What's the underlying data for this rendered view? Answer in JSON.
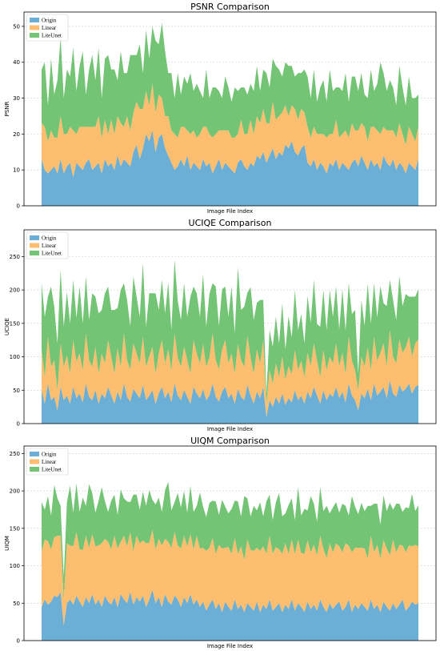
{
  "chart_data": [
    {
      "type": "area",
      "stacked": true,
      "title": "PSNR Comparison",
      "xlabel": "Image File Index",
      "ylabel": "PSNR",
      "ylim": [
        0,
        54
      ],
      "yticks": [
        0,
        10,
        20,
        30,
        40,
        50
      ],
      "grid": "horizontal dashed",
      "legend_position": "top-left",
      "n_points": 120,
      "colors": {
        "Origin": "#6baed6",
        "Linear": "#fdbf6f",
        "LiteUnet": "#74c476"
      },
      "series": [
        {
          "name": "Origin",
          "color": "#6baed6",
          "values": [
            13,
            10,
            9,
            10,
            11,
            9,
            13,
            9,
            11,
            12,
            8,
            12,
            11,
            10,
            12,
            13,
            10,
            11,
            12,
            9,
            13,
            11,
            12,
            10,
            14,
            11,
            13,
            12,
            11,
            15,
            17,
            13,
            16,
            20,
            18,
            21,
            15,
            19,
            20,
            16,
            14,
            12,
            10,
            11,
            13,
            11,
            14,
            10,
            12,
            11,
            10,
            13,
            11,
            12,
            9,
            11,
            13,
            10,
            12,
            11,
            10,
            9,
            12,
            13,
            11,
            10,
            12,
            11,
            14,
            13,
            15,
            12,
            14,
            16,
            13,
            15,
            14,
            17,
            16,
            18,
            15,
            14,
            16,
            17,
            12,
            11,
            13,
            10,
            12,
            11,
            9,
            12,
            11,
            13,
            10,
            12,
            11,
            10,
            12,
            13,
            11,
            14,
            12,
            10,
            13,
            11,
            12,
            10,
            14,
            12,
            11,
            13,
            10,
            12,
            11,
            9,
            12,
            11,
            10,
            13
          ]
        },
        {
          "name": "Linear",
          "color": "#fdbf6f",
          "values": [
            10,
            12,
            9,
            11,
            8,
            10,
            12,
            11,
            9,
            10,
            13,
            8,
            11,
            12,
            10,
            9,
            12,
            11,
            13,
            10,
            11,
            9,
            12,
            10,
            11,
            12,
            9,
            13,
            10,
            11,
            12,
            14,
            11,
            12,
            10,
            13,
            11,
            12,
            10,
            9,
            11,
            9,
            10,
            8,
            9,
            11,
            7,
            10,
            9,
            8,
            10,
            9,
            11,
            8,
            10,
            9,
            8,
            11,
            9,
            10,
            9,
            10,
            8,
            11,
            9,
            10,
            12,
            9,
            11,
            10,
            12,
            11,
            9,
            13,
            11,
            10,
            12,
            11,
            9,
            10,
            12,
            10,
            11,
            9,
            10,
            8,
            9,
            10,
            8,
            9,
            10,
            8,
            9,
            11,
            9,
            8,
            10,
            9,
            11,
            8,
            10,
            9,
            10,
            8,
            9,
            11,
            9,
            10,
            8,
            9,
            10,
            8,
            9,
            11,
            9,
            8,
            10,
            9,
            8,
            9
          ]
        },
        {
          "name": "LiteUnet",
          "color": "#74c476",
          "values": [
            15,
            18,
            10,
            20,
            12,
            16,
            22,
            10,
            18,
            14,
            23,
            12,
            17,
            21,
            9,
            16,
            20,
            13,
            19,
            11,
            17,
            22,
            14,
            18,
            10,
            20,
            15,
            12,
            21,
            16,
            13,
            18,
            10,
            17,
            13,
            16,
            20,
            14,
            21,
            18,
            12,
            16,
            10,
            18,
            9,
            14,
            13,
            17,
            11,
            15,
            12,
            8,
            16,
            10,
            14,
            13,
            11,
            9,
            15,
            12,
            10,
            14,
            12,
            9,
            13,
            11,
            10,
            12,
            14,
            9,
            11,
            14,
            10,
            12,
            15,
            13,
            10,
            12,
            14,
            11,
            9,
            13,
            10,
            12,
            14,
            11,
            16,
            9,
            13,
            15,
            10,
            18,
            12,
            9,
            14,
            12,
            16,
            10,
            13,
            15,
            11,
            14,
            9,
            12,
            16,
            10,
            13,
            20,
            15,
            11,
            14,
            12,
            9,
            16,
            13,
            11,
            14,
            10,
            12,
            9
          ]
        }
      ]
    },
    {
      "type": "area",
      "stacked": true,
      "title": "UCIQE Comparison",
      "xlabel": "Image File Index",
      "ylabel": "UCIQE",
      "ylim": [
        0,
        290
      ],
      "yticks": [
        0,
        50,
        100,
        150,
        200,
        250
      ],
      "grid": "horizontal dashed",
      "legend_position": "top-left",
      "n_points": 120,
      "colors": {
        "Origin": "#6baed6",
        "Linear": "#fdbf6f",
        "LiteUnet": "#74c476"
      },
      "series": [
        {
          "name": "Origin",
          "color": "#6baed6",
          "values": [
            50,
            30,
            60,
            35,
            40,
            20,
            55,
            35,
            42,
            30,
            55,
            38,
            45,
            32,
            60,
            40,
            35,
            50,
            30,
            45,
            38,
            55,
            42,
            30,
            48,
            35,
            60,
            40,
            33,
            52,
            45,
            38,
            58,
            35,
            42,
            50,
            30,
            45,
            55,
            38,
            48,
            32,
            60,
            42,
            35,
            50,
            40,
            30,
            55,
            45,
            38,
            52,
            35,
            42,
            60,
            40,
            33,
            48,
            55,
            38,
            45,
            30,
            52,
            40,
            35,
            58,
            42,
            30,
            48,
            38,
            55,
            10,
            35,
            25,
            40,
            30,
            45,
            28,
            38,
            32,
            50,
            35,
            42,
            30,
            48,
            38,
            55,
            42,
            30,
            50,
            35,
            45,
            40,
            55,
            38,
            48,
            32,
            60,
            42,
            35,
            20,
            45,
            38,
            52,
            35,
            60,
            42,
            48,
            55,
            38,
            65,
            45,
            40,
            58,
            48,
            52,
            60,
            45,
            55,
            58
          ]
        },
        {
          "name": "Linear",
          "color": "#fdbf6f",
          "values": [
            60,
            40,
            70,
            50,
            55,
            30,
            65,
            50,
            60,
            45,
            70,
            55,
            60,
            48,
            75,
            55,
            50,
            65,
            45,
            60,
            52,
            70,
            58,
            45,
            65,
            50,
            75,
            55,
            48,
            68,
            60,
            52,
            72,
            50,
            58,
            65,
            45,
            60,
            70,
            52,
            63,
            48,
            75,
            57,
            50,
            65,
            55,
            45,
            70,
            60,
            52,
            67,
            50,
            57,
            75,
            55,
            48,
            63,
            70,
            52,
            60,
            45,
            67,
            55,
            50,
            73,
            57,
            45,
            63,
            52,
            70,
            20,
            45,
            35,
            50,
            40,
            55,
            38,
            48,
            42,
            60,
            45,
            52,
            40,
            58,
            48,
            65,
            52,
            40,
            60,
            45,
            55,
            50,
            65,
            48,
            58,
            42,
            70,
            52,
            45,
            30,
            55,
            48,
            62,
            45,
            70,
            52,
            58,
            65,
            48,
            75,
            55,
            50,
            68,
            58,
            62,
            70,
            55,
            65,
            68
          ]
        },
        {
          "name": "LiteUnet",
          "color": "#74c476",
          "values": [
            100,
            90,
            60,
            120,
            80,
            70,
            110,
            60,
            95,
            75,
            90,
            65,
            100,
            70,
            85,
            60,
            110,
            75,
            90,
            65,
            105,
            80,
            70,
            95,
            60,
            115,
            75,
            90,
            65,
            100,
            85,
            70,
            110,
            60,
            95,
            80,
            120,
            65,
            90,
            75,
            100,
            60,
            110,
            85,
            70,
            95,
            65,
            115,
            80,
            90,
            70,
            105,
            60,
            95,
            75,
            110,
            65,
            90,
            80,
            70,
            100,
            60,
            115,
            75,
            90,
            65,
            105,
            80,
            70,
            95,
            60,
            15,
            60,
            55,
            70,
            50,
            80,
            45,
            75,
            55,
            90,
            60,
            70,
            50,
            85,
            65,
            95,
            55,
            75,
            90,
            60,
            100,
            70,
            85,
            55,
            95,
            65,
            80,
            70,
            90,
            25,
            85,
            60,
            95,
            70,
            80,
            65,
            100,
            60,
            90,
            75,
            85,
            65,
            95,
            70,
            80,
            60,
            90,
            70,
            75
          ]
        }
      ]
    },
    {
      "type": "area",
      "stacked": true,
      "title": "UIQM Comparison",
      "xlabel": "Image File Index",
      "ylabel": "UIQM",
      "ylim": [
        0,
        260
      ],
      "yticks": [
        0,
        50,
        100,
        150,
        200,
        250
      ],
      "grid": "horizontal dashed",
      "legend_position": "top-left",
      "n_points": 120,
      "colors": {
        "Origin": "#6baed6",
        "Linear": "#fdbf6f",
        "LiteUnet": "#74c476"
      },
      "series": [
        {
          "name": "Origin",
          "color": "#6baed6",
          "values": [
            45,
            55,
            48,
            52,
            60,
            58,
            65,
            20,
            50,
            55,
            48,
            60,
            52,
            45,
            58,
            50,
            62,
            48,
            55,
            45,
            60,
            52,
            48,
            58,
            45,
            62,
            55,
            50,
            65,
            48,
            58,
            52,
            60,
            45,
            55,
            68,
            50,
            58,
            45,
            62,
            52,
            48,
            60,
            55,
            45,
            58,
            50,
            62,
            48,
            55,
            45,
            52,
            40,
            48,
            55,
            42,
            50,
            38,
            52,
            45,
            40,
            55,
            42,
            48,
            38,
            50,
            45,
            40,
            52,
            38,
            48,
            42,
            55,
            40,
            45,
            50,
            38,
            48,
            42,
            55,
            40,
            50,
            45,
            38,
            52,
            42,
            48,
            40,
            55,
            45,
            38,
            50,
            42,
            48,
            52,
            40,
            45,
            55,
            38,
            48,
            42,
            50,
            45,
            40,
            55,
            42,
            48,
            38,
            52,
            45,
            40,
            50,
            42,
            48,
            55,
            40,
            45,
            52,
            48,
            50
          ]
        },
        {
          "name": "Linear",
          "color": "#fdbf6f",
          "values": [
            75,
            80,
            85,
            70,
            78,
            82,
            75,
            35,
            80,
            72,
            78,
            85,
            70,
            76,
            82,
            74,
            80,
            78,
            72,
            85,
            76,
            80,
            74,
            82,
            78,
            70,
            85,
            76,
            80,
            72,
            82,
            78,
            74,
            85,
            76,
            80,
            72,
            78,
            82,
            74,
            80,
            76,
            85,
            72,
            78,
            82,
            76,
            80,
            74,
            85,
            78,
            72,
            80,
            76,
            82,
            74,
            78,
            85,
            72,
            80,
            76,
            82,
            74,
            78,
            70,
            85,
            76,
            80,
            72,
            82,
            78,
            74,
            85,
            76,
            80,
            72,
            78,
            82,
            74,
            80,
            76,
            85,
            72,
            78,
            82,
            76,
            80,
            74,
            85,
            78,
            72,
            80,
            76,
            82,
            74,
            78,
            85,
            72,
            80,
            76,
            82,
            74,
            78,
            70,
            85,
            76,
            80,
            72,
            82,
            78,
            74,
            85,
            76,
            80,
            72,
            78,
            82,
            74,
            80,
            76
          ]
        },
        {
          "name": "LiteUnet",
          "color": "#74c476",
          "values": [
            65,
            40,
            60,
            45,
            70,
            50,
            40,
            30,
            55,
            80,
            45,
            65,
            50,
            70,
            40,
            85,
            55,
            45,
            60,
            75,
            50,
            40,
            65,
            55,
            45,
            70,
            50,
            60,
            40,
            75,
            55,
            45,
            65,
            50,
            70,
            40,
            60,
            55,
            45,
            65,
            80,
            50,
            40,
            70,
            55,
            60,
            45,
            65,
            50,
            40,
            75,
            55,
            45,
            60,
            50,
            70,
            40,
            65,
            55,
            45,
            60,
            50,
            70,
            40,
            85,
            55,
            45,
            60,
            50,
            65,
            40,
            70,
            55,
            45,
            60,
            75,
            50,
            40,
            65,
            55,
            45,
            70,
            50,
            60,
            40,
            75,
            55,
            45,
            65,
            50,
            70,
            40,
            60,
            55,
            45,
            65,
            50,
            40,
            75,
            55,
            45,
            60,
            50,
            70,
            40,
            65,
            55,
            45,
            60,
            50,
            70,
            40,
            65,
            55,
            45,
            60,
            50,
            70,
            45,
            55
          ]
        }
      ]
    }
  ]
}
